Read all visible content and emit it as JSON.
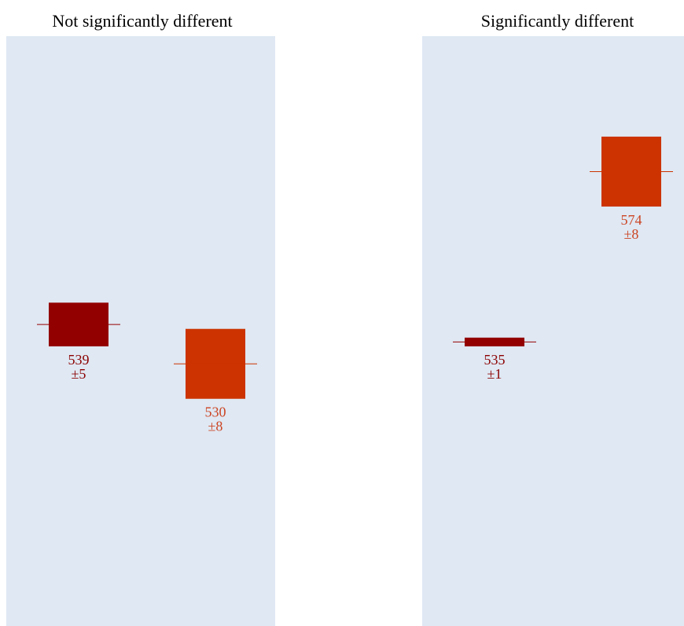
{
  "colors": {
    "panel_bg": "#dfe8f3",
    "series_a": "#930000",
    "series_b": "#cc3300",
    "label_a": "#8b0000",
    "label_b": "#cc4422"
  },
  "chart_data": [
    {
      "type": "bar",
      "title": "Not significantly different",
      "xlabel": "",
      "ylabel": "",
      "grid": false,
      "ylim": [
        470,
        605
      ],
      "series": [
        {
          "mean": 539,
          "se": 5,
          "label": "539",
          "err_label": "±5"
        },
        {
          "mean": 530,
          "se": 8,
          "label": "530",
          "err_label": "±8"
        }
      ]
    },
    {
      "type": "bar",
      "title": "Significantly different",
      "xlabel": "",
      "ylabel": "",
      "grid": false,
      "ylim": [
        470,
        605
      ],
      "series": [
        {
          "mean": 535,
          "se": 1,
          "label": "535",
          "err_label": "±1"
        },
        {
          "mean": 574,
          "se": 8,
          "label": "574",
          "err_label": "±8"
        }
      ]
    }
  ]
}
